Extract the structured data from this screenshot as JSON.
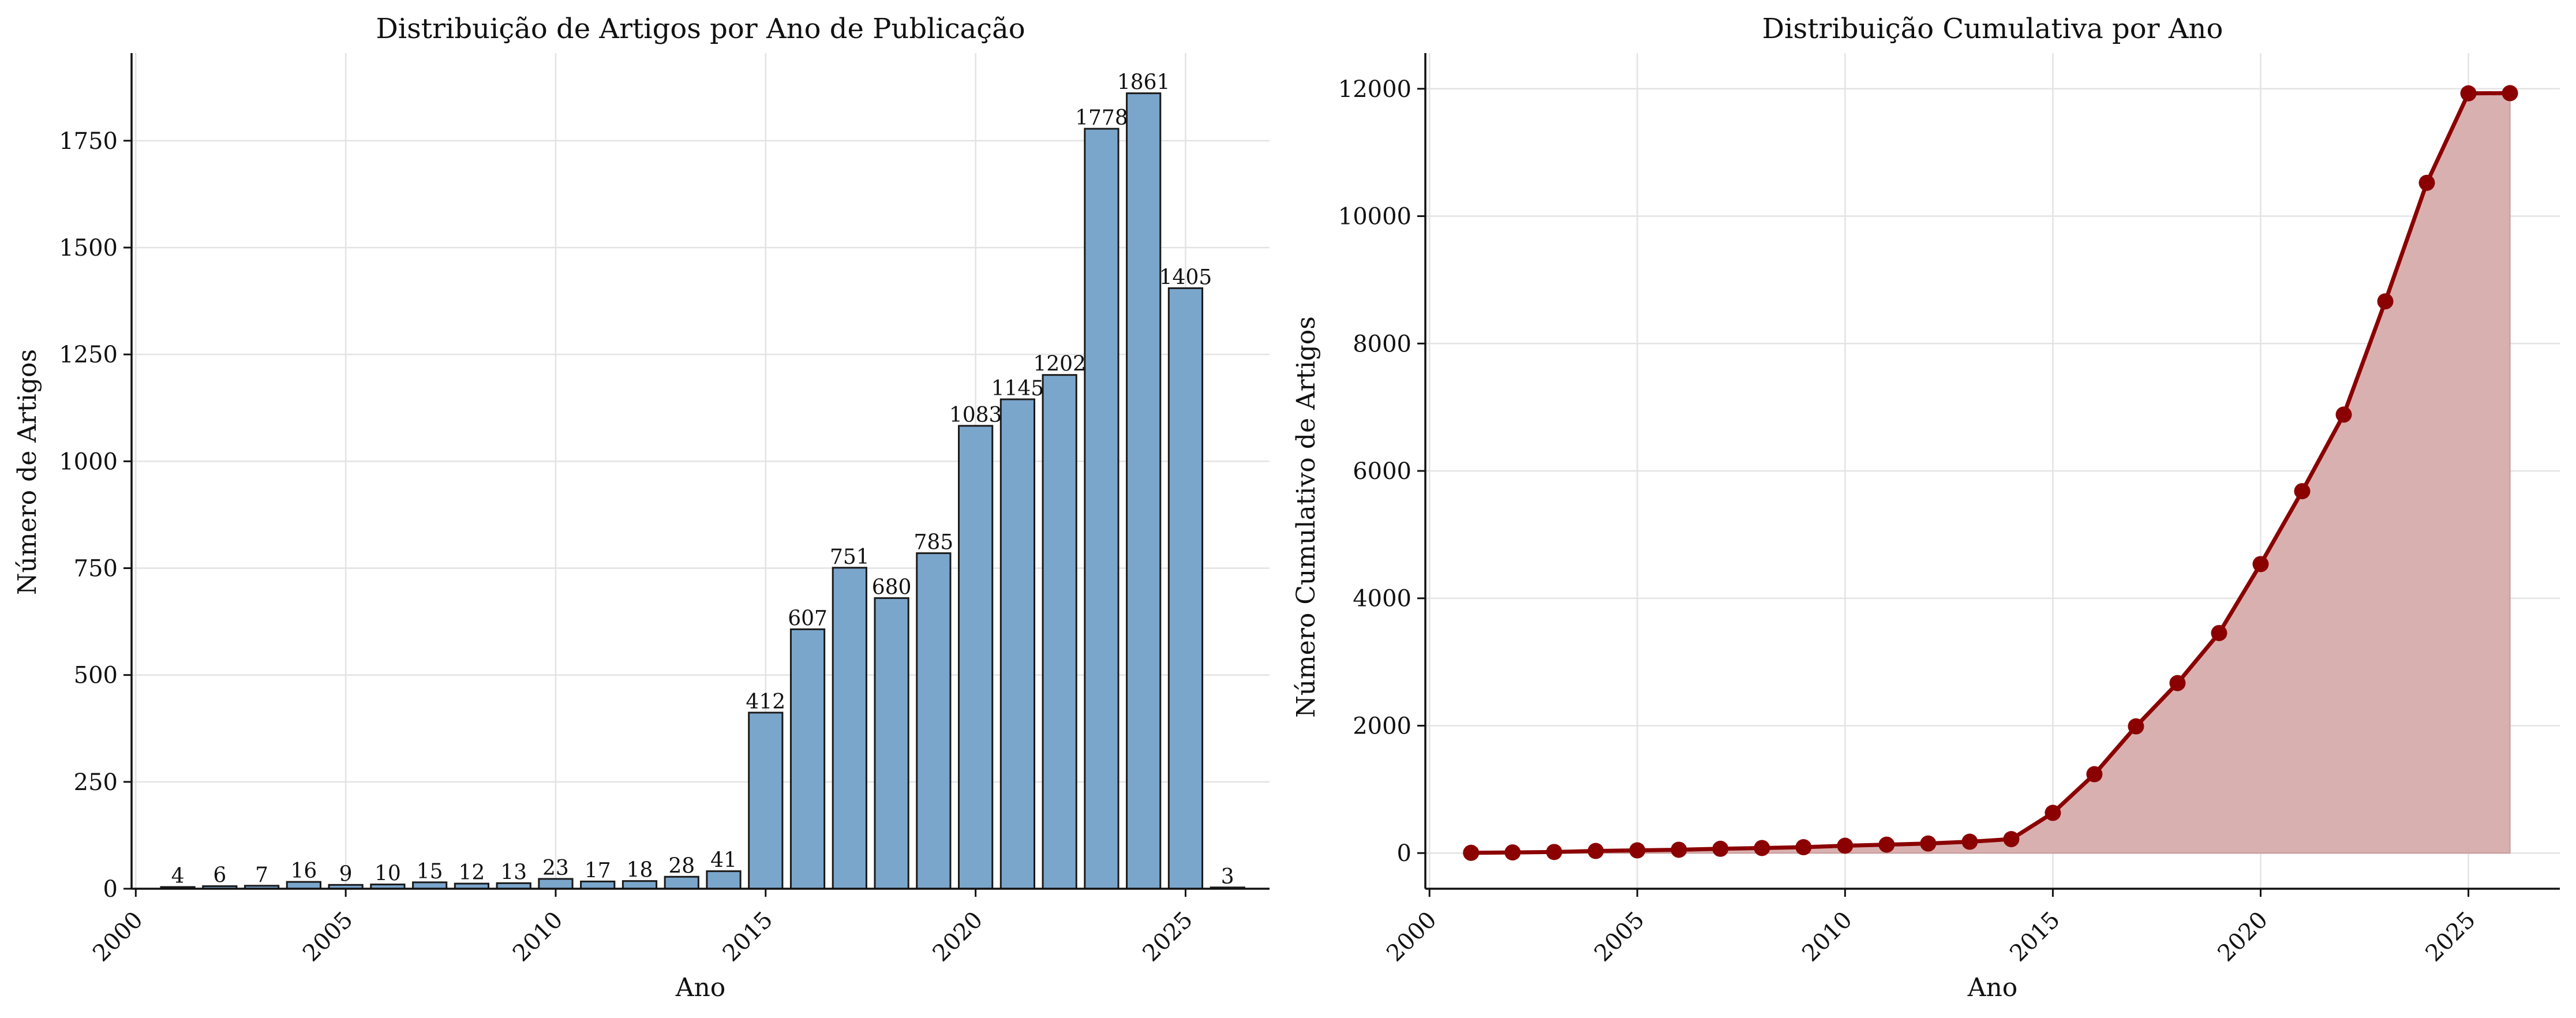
{
  "chart_data": [
    {
      "type": "bar",
      "title": "Distribuição de Artigos por Ano de Publicação",
      "xlabel": "Ano",
      "ylabel": "Número de Artigos",
      "x": [
        2001,
        2002,
        2003,
        2004,
        2005,
        2006,
        2007,
        2008,
        2009,
        2010,
        2011,
        2012,
        2013,
        2014,
        2015,
        2016,
        2017,
        2018,
        2019,
        2020,
        2021,
        2022,
        2023,
        2024,
        2025,
        2026
      ],
      "values": [
        4,
        6,
        7,
        16,
        9,
        10,
        15,
        12,
        13,
        23,
        17,
        18,
        28,
        41,
        412,
        607,
        751,
        680,
        785,
        1083,
        1145,
        1202,
        1778,
        1861,
        1405,
        3
      ],
      "xlim": [
        1999.9,
        2027.0
      ],
      "ylim": [
        0,
        1955
      ],
      "xticks": [
        "2000",
        "2005",
        "2010",
        "2015",
        "2020",
        "2025"
      ],
      "yticks": [
        "0",
        "250",
        "500",
        "750",
        "1000",
        "1250",
        "1500",
        "1750"
      ],
      "bar_color": "#7ba6cc",
      "edge_color": "#1a1a1a",
      "grid": true
    },
    {
      "type": "area",
      "title": "Distribuição Cumulativa por Ano",
      "xlabel": "Ano",
      "ylabel": "Número Cumulativo de Artigos",
      "x": [
        2001,
        2002,
        2003,
        2004,
        2005,
        2006,
        2007,
        2008,
        2009,
        2010,
        2011,
        2012,
        2013,
        2014,
        2015,
        2016,
        2017,
        2018,
        2019,
        2020,
        2021,
        2022,
        2023,
        2024,
        2025,
        2026
      ],
      "values": [
        4,
        10,
        17,
        33,
        42,
        52,
        67,
        79,
        92,
        115,
        132,
        150,
        178,
        219,
        631,
        1238,
        1989,
        2669,
        3454,
        4537,
        5682,
        6884,
        8662,
        10523,
        11928,
        11931
      ],
      "xlim": [
        1999.9,
        2027.2
      ],
      "ylim": [
        -560,
        12560
      ],
      "xticks": [
        "2000",
        "2005",
        "2010",
        "2015",
        "2020",
        "2025"
      ],
      "yticks": [
        "0",
        "2000",
        "4000",
        "6000",
        "8000",
        "10000",
        "12000"
      ],
      "line_color": "#8b0000",
      "fill_color": "#d9b0b0",
      "grid": true
    }
  ]
}
